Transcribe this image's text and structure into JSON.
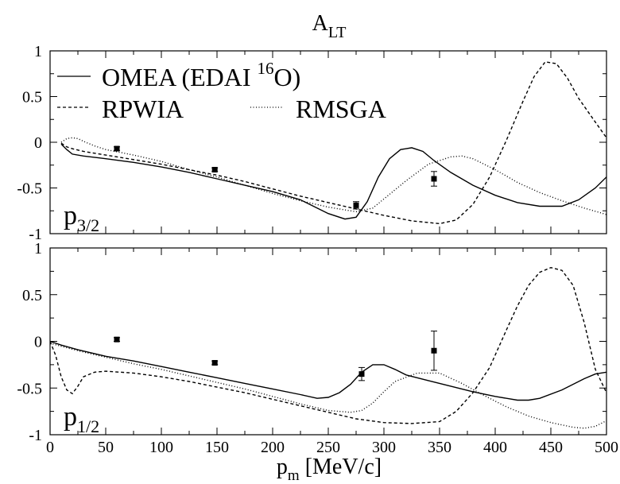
{
  "figure": {
    "title_main": "A",
    "title_sub": "LT",
    "xlabel_main": "p",
    "xlabel_sub": "m",
    "xlabel_rest": " [MeV/c]"
  },
  "legend": {
    "omea": {
      "pre": "OMEA (EDAI ",
      "sup": "16",
      "post": "O)"
    },
    "rpwia": "RPWIA",
    "rmsga": "RMSGA"
  },
  "chart_data": [
    {
      "type": "line",
      "panel_label": {
        "main": "p",
        "sub": "3/2"
      },
      "xlim": [
        0,
        500
      ],
      "ylim": [
        -1,
        1
      ],
      "x_ticks": [
        "0",
        "50",
        "100",
        "150",
        "200",
        "250",
        "300",
        "350",
        "400",
        "450",
        "500"
      ],
      "y_ticks": [
        "-1",
        "-0.5",
        "0",
        "0.5",
        "1"
      ],
      "x_tick_labels_visible": false,
      "series": [
        {
          "name": "OMEA (EDAI 16O)",
          "style": "solid",
          "x": [
            10,
            15,
            20,
            30,
            50,
            75,
            100,
            125,
            150,
            175,
            200,
            225,
            250,
            265,
            275,
            285,
            295,
            305,
            315,
            325,
            335,
            345,
            360,
            380,
            400,
            420,
            440,
            460,
            475,
            490,
            500
          ],
          "y": [
            -0.02,
            -0.08,
            -0.13,
            -0.15,
            -0.18,
            -0.22,
            -0.27,
            -0.33,
            -0.4,
            -0.47,
            -0.54,
            -0.63,
            -0.78,
            -0.84,
            -0.82,
            -0.65,
            -0.38,
            -0.18,
            -0.08,
            -0.06,
            -0.1,
            -0.2,
            -0.33,
            -0.47,
            -0.58,
            -0.66,
            -0.7,
            -0.7,
            -0.63,
            -0.5,
            -0.38
          ]
        },
        {
          "name": "RPWIA",
          "style": "dashed",
          "x": [
            10,
            15,
            20,
            30,
            50,
            75,
            100,
            125,
            150,
            175,
            200,
            225,
            250,
            275,
            300,
            325,
            350,
            365,
            380,
            395,
            410,
            425,
            435,
            445,
            455,
            465,
            475,
            490,
            500
          ],
          "y": [
            -0.01,
            -0.05,
            -0.07,
            -0.1,
            -0.14,
            -0.19,
            -0.24,
            -0.3,
            -0.36,
            -0.43,
            -0.51,
            -0.59,
            -0.66,
            -0.73,
            -0.8,
            -0.86,
            -0.89,
            -0.85,
            -0.68,
            -0.38,
            0.02,
            0.45,
            0.72,
            0.88,
            0.86,
            0.7,
            0.48,
            0.22,
            0.05
          ]
        },
        {
          "name": "RMSGA",
          "style": "dotted",
          "x": [
            10,
            15,
            20,
            25,
            30,
            40,
            50,
            75,
            100,
            125,
            150,
            175,
            200,
            225,
            250,
            275,
            290,
            300,
            320,
            340,
            360,
            370,
            380,
            400,
            420,
            440,
            460,
            480,
            500
          ],
          "y": [
            0.0,
            0.04,
            0.05,
            0.04,
            0.01,
            -0.04,
            -0.08,
            -0.14,
            -0.21,
            -0.3,
            -0.38,
            -0.47,
            -0.56,
            -0.64,
            -0.71,
            -0.76,
            -0.72,
            -0.62,
            -0.42,
            -0.24,
            -0.16,
            -0.15,
            -0.18,
            -0.3,
            -0.44,
            -0.55,
            -0.64,
            -0.72,
            -0.79
          ]
        }
      ],
      "data_points": {
        "x": [
          60,
          148,
          275,
          345
        ],
        "y": [
          -0.07,
          -0.3,
          -0.69,
          -0.4
        ],
        "err": [
          0.02,
          0.02,
          0.04,
          0.08
        ]
      }
    },
    {
      "type": "line",
      "panel_label": {
        "main": "p",
        "sub": "1/2"
      },
      "xlim": [
        0,
        500
      ],
      "ylim": [
        -1,
        1
      ],
      "x_ticks": [
        "0",
        "50",
        "100",
        "150",
        "200",
        "250",
        "300",
        "350",
        "400",
        "450",
        "500"
      ],
      "y_ticks": [
        "-1",
        "-0.5",
        "0",
        "0.5",
        "1"
      ],
      "x_tick_labels_visible": true,
      "series": [
        {
          "name": "OMEA (EDAI 16O)",
          "style": "solid",
          "x": [
            0,
            10,
            25,
            50,
            75,
            100,
            125,
            150,
            175,
            200,
            225,
            240,
            250,
            260,
            270,
            280,
            290,
            300,
            310,
            320,
            340,
            360,
            380,
            400,
            420,
            430,
            440,
            460,
            480,
            490,
            500
          ],
          "y": [
            0.0,
            -0.04,
            -0.09,
            -0.16,
            -0.21,
            -0.27,
            -0.33,
            -0.39,
            -0.45,
            -0.51,
            -0.57,
            -0.61,
            -0.6,
            -0.55,
            -0.46,
            -0.33,
            -0.25,
            -0.25,
            -0.3,
            -0.36,
            -0.42,
            -0.48,
            -0.54,
            -0.59,
            -0.63,
            -0.63,
            -0.61,
            -0.52,
            -0.4,
            -0.35,
            -0.33
          ]
        },
        {
          "name": "RPWIA",
          "style": "dashed",
          "x": [
            0,
            5,
            10,
            15,
            20,
            25,
            30,
            40,
            50,
            75,
            100,
            125,
            150,
            175,
            200,
            225,
            250,
            275,
            300,
            325,
            350,
            365,
            380,
            395,
            410,
            420,
            430,
            440,
            450,
            460,
            470,
            480,
            490,
            500
          ],
          "y": [
            0.0,
            -0.15,
            -0.38,
            -0.52,
            -0.56,
            -0.48,
            -0.38,
            -0.33,
            -0.32,
            -0.34,
            -0.38,
            -0.43,
            -0.49,
            -0.55,
            -0.62,
            -0.69,
            -0.76,
            -0.83,
            -0.87,
            -0.88,
            -0.86,
            -0.75,
            -0.55,
            -0.28,
            0.12,
            0.38,
            0.6,
            0.74,
            0.79,
            0.76,
            0.6,
            0.2,
            -0.3,
            -0.55
          ]
        },
        {
          "name": "RMSGA",
          "style": "dotted",
          "x": [
            0,
            25,
            50,
            75,
            100,
            125,
            150,
            175,
            200,
            225,
            250,
            270,
            280,
            290,
            300,
            310,
            330,
            350,
            370,
            390,
            410,
            430,
            450,
            470,
            480,
            490,
            500
          ],
          "y": [
            -0.02,
            -0.1,
            -0.17,
            -0.24,
            -0.3,
            -0.37,
            -0.44,
            -0.51,
            -0.59,
            -0.67,
            -0.74,
            -0.76,
            -0.74,
            -0.66,
            -0.54,
            -0.43,
            -0.34,
            -0.34,
            -0.45,
            -0.58,
            -0.7,
            -0.8,
            -0.87,
            -0.92,
            -0.93,
            -0.91,
            -0.85
          ]
        }
      ],
      "data_points": {
        "x": [
          60,
          148,
          280,
          345
        ],
        "y": [
          0.02,
          -0.23,
          -0.35,
          -0.1
        ],
        "err": [
          0.02,
          0.02,
          0.07,
          0.21
        ]
      }
    }
  ]
}
